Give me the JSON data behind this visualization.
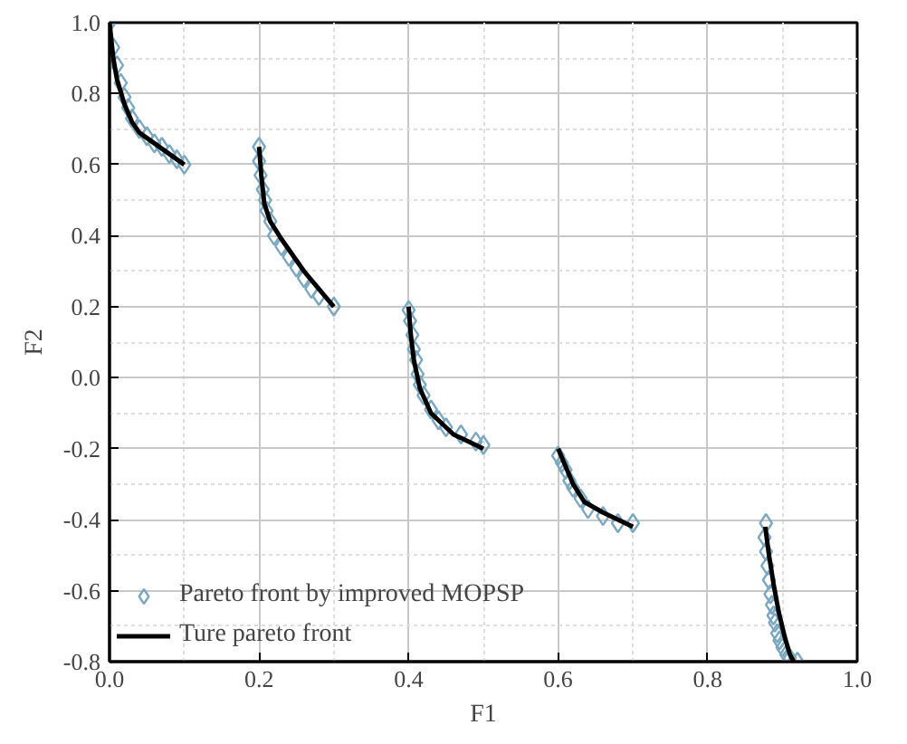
{
  "chart_data": {
    "type": "scatter",
    "xlabel": "F1",
    "ylabel": "F2",
    "xlim": [
      0,
      1
    ],
    "ylim": [
      -0.8,
      1.0
    ],
    "xticks": [
      {
        "value": 0,
        "label": "0.0"
      },
      0.2,
      0.4,
      0.6,
      0.8,
      {
        "value": 1,
        "label": "1.0"
      }
    ],
    "yticks": [
      -0.8,
      -0.6,
      -0.4,
      -0.2,
      {
        "value": 0,
        "label": "0.0"
      },
      0.2,
      0.4,
      0.6,
      0.8,
      {
        "value": 1,
        "label": "1.0"
      }
    ],
    "grid": true,
    "legend": "bottom left",
    "series": [
      {
        "name": "Pareto front by improved MOPSP",
        "marker": "diamond",
        "color": "#7ba7bf",
        "x": [
          0,
          0.005,
          0.01,
          0.015,
          0.02,
          0.025,
          0.03,
          0.04,
          0.05,
          0.06,
          0.07,
          0.08,
          0.09,
          0.1,
          0.2,
          0.2,
          0.202,
          0.205,
          0.208,
          0.21,
          0.215,
          0.22,
          0.23,
          0.24,
          0.25,
          0.26,
          0.27,
          0.28,
          0.3,
          0.4,
          0.402,
          0.405,
          0.407,
          0.41,
          0.412,
          0.415,
          0.42,
          0.43,
          0.44,
          0.45,
          0.47,
          0.49,
          0.5,
          0.6,
          0.605,
          0.61,
          0.615,
          0.62,
          0.63,
          0.64,
          0.66,
          0.68,
          0.7,
          0.878,
          0.876,
          0.878,
          0.88,
          0.882,
          0.884,
          0.886,
          0.888,
          0.89,
          0.893,
          0.896,
          0.9,
          0.905,
          0.91,
          0.92
        ],
        "values": [
          1.0,
          0.93,
          0.88,
          0.83,
          0.79,
          0.76,
          0.73,
          0.7,
          0.68,
          0.66,
          0.65,
          0.63,
          0.615,
          0.6,
          0.65,
          0.61,
          0.57,
          0.53,
          0.5,
          0.47,
          0.44,
          0.4,
          0.37,
          0.34,
          0.31,
          0.28,
          0.25,
          0.23,
          0.2,
          0.19,
          0.16,
          0.12,
          0.08,
          0.05,
          0.01,
          -0.02,
          -0.05,
          -0.09,
          -0.12,
          -0.14,
          -0.16,
          -0.18,
          -0.19,
          -0.22,
          -0.24,
          -0.26,
          -0.29,
          -0.31,
          -0.34,
          -0.37,
          -0.39,
          -0.41,
          -0.41,
          -0.41,
          -0.45,
          -0.49,
          -0.53,
          -0.57,
          -0.61,
          -0.64,
          -0.67,
          -0.69,
          -0.72,
          -0.74,
          -0.76,
          -0.78,
          -0.79,
          -0.8
        ]
      },
      {
        "name": "Ture pareto front",
        "type": "line",
        "line_style": "solid",
        "color": "#000000",
        "x": [
          0,
          0.005,
          0.01,
          0.02,
          0.03,
          0.04,
          0.06,
          0.08,
          0.1,
          null,
          0.2,
          0.203,
          0.207,
          0.215,
          0.23,
          0.26,
          0.3,
          null,
          0.4,
          0.403,
          0.407,
          0.415,
          0.43,
          0.46,
          0.5,
          null,
          0.6,
          0.61,
          0.62,
          0.635,
          0.66,
          0.7,
          null,
          0.877,
          0.882,
          0.888,
          0.895,
          0.903,
          0.91,
          0.915
        ],
        "values": [
          1.0,
          0.9,
          0.84,
          0.77,
          0.72,
          0.69,
          0.66,
          0.63,
          0.6,
          null,
          0.65,
          0.57,
          0.49,
          0.44,
          0.39,
          0.3,
          0.2,
          null,
          0.2,
          0.12,
          0.05,
          -0.03,
          -0.1,
          -0.16,
          -0.2,
          null,
          -0.2,
          -0.25,
          -0.3,
          -0.35,
          -0.38,
          -0.42,
          null,
          -0.42,
          -0.5,
          -0.58,
          -0.66,
          -0.73,
          -0.78,
          -0.8
        ]
      }
    ]
  }
}
